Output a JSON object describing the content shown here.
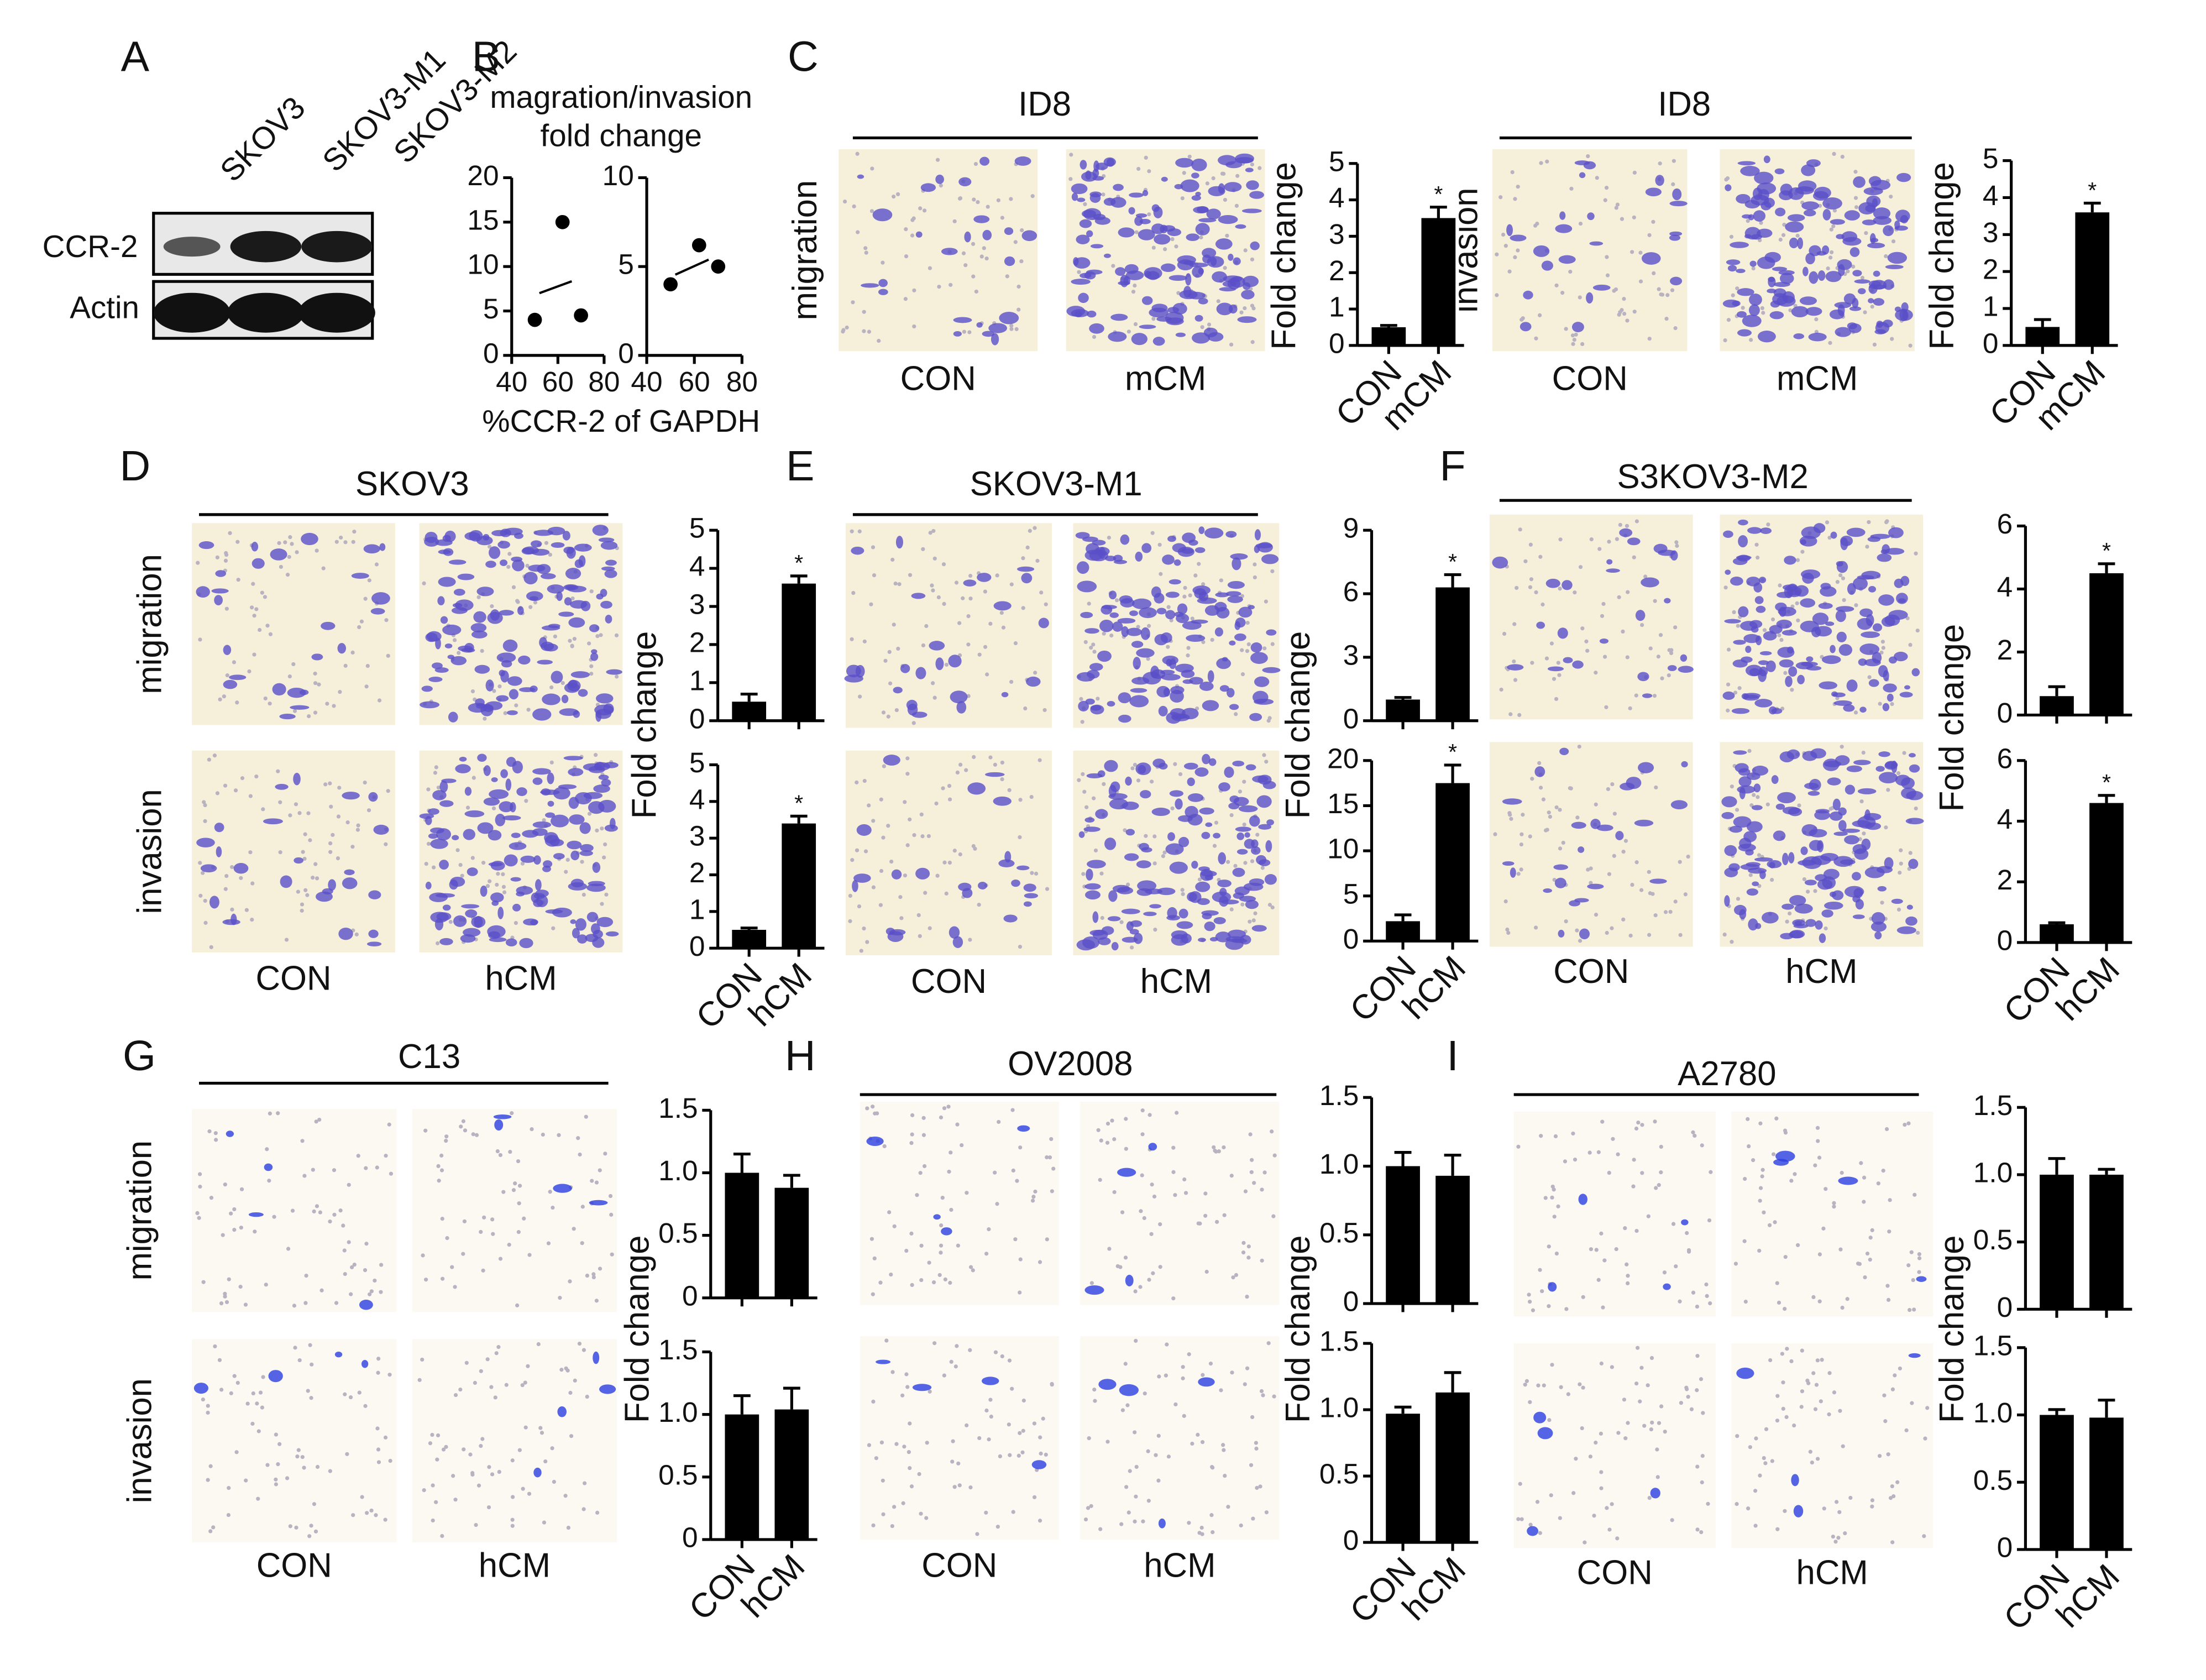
{
  "figure": {
    "panel_letters": [
      "A",
      "B",
      "C",
      "D",
      "E",
      "F",
      "G",
      "H",
      "I"
    ],
    "blot": {
      "lanes": [
        "SKOV3",
        "SKOV3-M1",
        "SKOV3-M2"
      ],
      "rows": [
        "CCR-2",
        "Actin"
      ]
    },
    "image_panels": [
      {
        "title": "ID8",
        "conditions": [
          "CON",
          "mCM"
        ],
        "rows": [
          "migration"
        ]
      },
      {
        "title": "ID8",
        "conditions": [
          "CON",
          "mCM"
        ],
        "rows": [
          "invasion"
        ]
      },
      {
        "title": "SKOV3",
        "conditions": [
          "CON",
          "hCM"
        ],
        "rows": [
          "migration",
          "invasion"
        ]
      },
      {
        "title": "SKOV3-M1",
        "conditions": [
          "CON",
          "hCM"
        ]
      },
      {
        "title": "S3KOV3-M2",
        "conditions": [
          "CON",
          "hCM"
        ]
      },
      {
        "title": "C13",
        "conditions": [
          "CON",
          "hCM"
        ],
        "rows": [
          "migration",
          "invasion"
        ]
      },
      {
        "title": "OV2008",
        "conditions": [
          "CON",
          "hCM"
        ]
      },
      {
        "title": "A2780",
        "conditions": [
          "CON",
          "hCM"
        ]
      }
    ]
  },
  "chart_data": [
    {
      "type": "scatter",
      "title": "magration/invasion",
      "subtitle": "fold change",
      "x_label": "%CCR-2 of GAPDH",
      "x": [
        50,
        62,
        70
      ],
      "values": [
        4,
        15,
        4.5
      ],
      "xlim": [
        40,
        80
      ],
      "xticks": [
        40,
        60,
        80
      ],
      "ylim": [
        0,
        20
      ],
      "yticks": [
        0,
        5,
        10,
        15,
        20
      ],
      "color": "#000000",
      "trendline": true
    },
    {
      "type": "scatter",
      "x": [
        50,
        62,
        70
      ],
      "values": [
        4,
        6.2,
        5
      ],
      "xlim": [
        40,
        80
      ],
      "xticks": [
        40,
        60,
        80
      ],
      "ylim": [
        0,
        10
      ],
      "yticks": [
        0,
        5,
        10
      ],
      "color": "#000000",
      "trendline": true
    },
    {
      "type": "bar",
      "y_label": "Fold change",
      "categories": [
        "CON",
        "mCM"
      ],
      "values": [
        0.5,
        3.5
      ],
      "errors": [
        0.05,
        0.3
      ],
      "significance": [
        null,
        "*"
      ],
      "ylim": [
        0,
        5
      ],
      "yticks": [
        0,
        1,
        2,
        3,
        4,
        5
      ],
      "color": "#000000"
    },
    {
      "type": "bar",
      "y_label": "Fold change",
      "categories": [
        "CON",
        "mCM"
      ],
      "values": [
        0.5,
        3.6
      ],
      "errors": [
        0.2,
        0.25
      ],
      "significance": [
        null,
        "*"
      ],
      "ylim": [
        0,
        5
      ],
      "yticks": [
        0,
        1,
        2,
        3,
        4,
        5
      ],
      "color": "#000000"
    },
    {
      "type": "bar",
      "y_label": "Fold change",
      "values": [
        0.5,
        3.6
      ],
      "errors": [
        0.2,
        0.2
      ],
      "significance": [
        null,
        "*"
      ],
      "ylim": [
        0,
        5
      ],
      "yticks": [
        0,
        1,
        2,
        3,
        4,
        5
      ],
      "color": "#000000"
    },
    {
      "type": "bar",
      "categories": [
        "CON",
        "hCM"
      ],
      "values": [
        0.5,
        3.4
      ],
      "errors": [
        0.05,
        0.2
      ],
      "significance": [
        null,
        "*"
      ],
      "ylim": [
        0,
        5
      ],
      "yticks": [
        0,
        1,
        2,
        3,
        4,
        5
      ],
      "color": "#000000"
    },
    {
      "type": "bar",
      "y_label": "Fold change",
      "values": [
        1,
        6.3
      ],
      "errors": [
        0.1,
        0.6
      ],
      "significance": [
        null,
        "*"
      ],
      "ylim": [
        0,
        9
      ],
      "yticks": [
        0,
        3,
        6,
        9
      ],
      "color": "#000000"
    },
    {
      "type": "bar",
      "categories": [
        "CON",
        "hCM"
      ],
      "values": [
        2.2,
        17.5
      ],
      "errors": [
        0.7,
        2
      ],
      "significance": [
        null,
        "*"
      ],
      "ylim": [
        0,
        20
      ],
      "yticks": [
        0,
        5,
        10,
        15,
        20
      ],
      "color": "#000000"
    },
    {
      "type": "bar",
      "y_label": "Fold change",
      "values": [
        0.6,
        4.5
      ],
      "errors": [
        0.3,
        0.3
      ],
      "significance": [
        null,
        "*"
      ],
      "ylim": [
        0,
        6
      ],
      "yticks": [
        0,
        2,
        4,
        6
      ],
      "color": "#000000"
    },
    {
      "type": "bar",
      "categories": [
        "CON",
        "hCM"
      ],
      "values": [
        0.6,
        4.6
      ],
      "errors": [
        0.05,
        0.25
      ],
      "significance": [
        null,
        "*"
      ],
      "ylim": [
        0,
        6
      ],
      "yticks": [
        0,
        2,
        4,
        6
      ],
      "color": "#000000"
    },
    {
      "type": "bar",
      "y_label": "Fold change",
      "values": [
        1.0,
        0.88
      ],
      "errors": [
        0.15,
        0.1
      ],
      "ylim": [
        0,
        1.5
      ],
      "yticks": [
        0,
        0.5,
        {
          "value": 1,
          "label": "1.0"
        },
        1.5
      ],
      "color": "#000000"
    },
    {
      "type": "bar",
      "categories": [
        "CON",
        "hCM"
      ],
      "values": [
        1.0,
        1.04
      ],
      "errors": [
        0.15,
        0.17
      ],
      "ylim": [
        0,
        1.5
      ],
      "yticks": [
        0,
        0.5,
        {
          "value": 1,
          "label": "1.0"
        },
        1.5
      ],
      "color": "#000000"
    },
    {
      "type": "bar",
      "y_label": "Fold change",
      "values": [
        1.0,
        0.93
      ],
      "errors": [
        0.1,
        0.15
      ],
      "ylim": [
        0,
        1.5
      ],
      "yticks": [
        0,
        0.5,
        {
          "value": 1,
          "label": "1.0"
        },
        1.5
      ],
      "color": "#000000"
    },
    {
      "type": "bar",
      "categories": [
        "CON",
        "hCM"
      ],
      "values": [
        0.97,
        1.13
      ],
      "errors": [
        0.05,
        0.15
      ],
      "ylim": [
        0,
        1.5
      ],
      "yticks": [
        0,
        0.5,
        {
          "value": 1,
          "label": "1.0"
        },
        1.5
      ],
      "color": "#000000"
    },
    {
      "type": "bar",
      "y_label": "Fold change",
      "values": [
        1.0,
        1.0
      ],
      "errors": [
        0.12,
        0.04
      ],
      "ylim": [
        0,
        1.5
      ],
      "yticks": [
        0,
        0.5,
        {
          "value": 1,
          "label": "1.0"
        },
        1.5
      ],
      "color": "#000000"
    },
    {
      "type": "bar",
      "categories": [
        "CON",
        "hCM"
      ],
      "values": [
        1.0,
        0.98
      ],
      "errors": [
        0.04,
        0.13
      ],
      "ylim": [
        0,
        1.5
      ],
      "yticks": [
        0,
        0.5,
        {
          "value": 1,
          "label": "1.0"
        },
        1.5
      ],
      "color": "#000000"
    }
  ]
}
